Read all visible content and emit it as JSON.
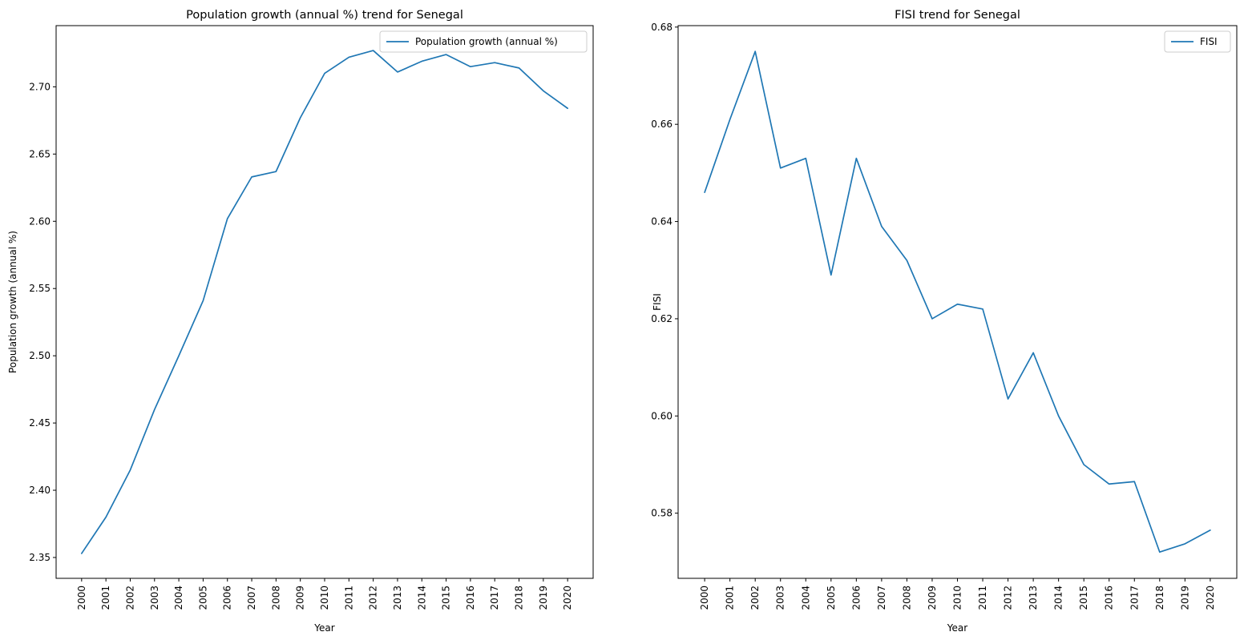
{
  "chart_data": [
    {
      "type": "line",
      "title": "Population growth (annual %) trend for Senegal",
      "xlabel": "Year",
      "ylabel": "Population growth (annual %)",
      "x": [
        "2000",
        "2001",
        "2002",
        "2003",
        "2004",
        "2005",
        "2006",
        "2007",
        "2008",
        "2009",
        "2010",
        "2011",
        "2012",
        "2013",
        "2014",
        "2015",
        "2016",
        "2017",
        "2018",
        "2019",
        "2020"
      ],
      "series": [
        {
          "name": "Population growth (annual %)",
          "color": "#1f77b4",
          "values": [
            2.353,
            2.38,
            2.415,
            2.46,
            2.5,
            2.541,
            2.602,
            2.633,
            2.637,
            2.677,
            2.71,
            2.722,
            2.727,
            2.711,
            2.719,
            2.724,
            2.715,
            2.718,
            2.714,
            2.697,
            2.684
          ]
        }
      ],
      "ylim": [
        2.3345,
        2.7455
      ],
      "yticks": [
        2.35,
        2.4,
        2.45,
        2.5,
        2.55,
        2.6,
        2.65,
        2.7
      ],
      "ytick_labels": [
        "2.35",
        "2.40",
        "2.45",
        "2.50",
        "2.55",
        "2.60",
        "2.65",
        "2.70"
      ],
      "grid": false,
      "legend": "top-right"
    },
    {
      "type": "line",
      "title": "FISI trend for Senegal",
      "xlabel": "Year",
      "ylabel": "FISI",
      "x": [
        "2000",
        "2001",
        "2002",
        "2003",
        "2004",
        "2005",
        "2006",
        "2007",
        "2008",
        "2009",
        "2010",
        "2011",
        "2012",
        "2013",
        "2014",
        "2015",
        "2016",
        "2017",
        "2018",
        "2019",
        "2020"
      ],
      "series": [
        {
          "name": "FISI",
          "color": "#1f77b4",
          "values": [
            0.646,
            0.661,
            0.675,
            0.651,
            0.653,
            0.629,
            0.653,
            0.639,
            0.632,
            0.62,
            0.623,
            0.622,
            0.6035,
            0.613,
            0.6,
            0.59,
            0.586,
            0.5865,
            0.572,
            0.5737,
            0.5765
          ]
        }
      ],
      "ylim": [
        0.5666,
        0.6803
      ],
      "yticks": [
        0.58,
        0.6,
        0.62,
        0.64,
        0.66,
        0.68
      ],
      "ytick_labels": [
        "0.58",
        "0.60",
        "0.62",
        "0.64",
        "0.66",
        "0.68"
      ],
      "grid": false,
      "legend": "top-right"
    }
  ]
}
